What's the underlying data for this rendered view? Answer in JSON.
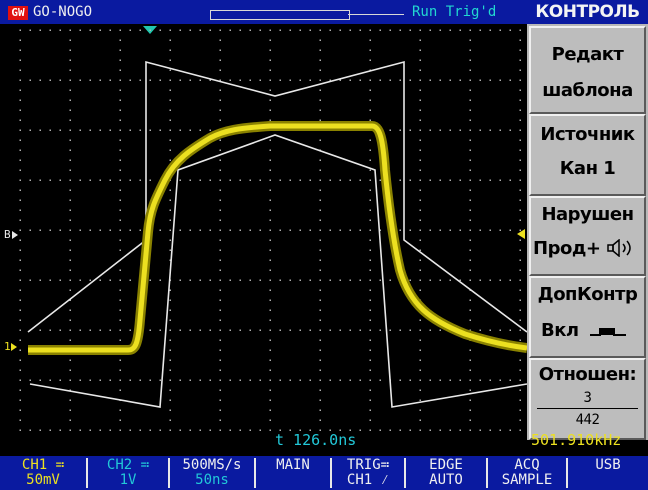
{
  "topbar": {
    "logo": "GW",
    "mode": "GO-NOGO",
    "status": "Run Trig'd"
  },
  "menu": {
    "title": "КОНТРОЛЬ",
    "buttons": [
      {
        "line1": "Редакт",
        "line2": "шаблона"
      },
      {
        "line1": "Источник",
        "line2": "Кан 1"
      },
      {
        "line1": "Нарушен",
        "line2": "Прод+"
      },
      {
        "line1": "ДопКонтр",
        "line2": "Вкл"
      },
      {
        "line1": "Отношен:",
        "num": "3",
        "den": "442"
      }
    ]
  },
  "readouts": {
    "time": "t 126.0ns",
    "frequency": "501.910kHz"
  },
  "bottom": [
    {
      "top": "CH1",
      "bottom": "50mV",
      "color": "yellow"
    },
    {
      "top": "CH2",
      "bottom": "1V",
      "color": "cyan"
    },
    {
      "top": "500MS/s",
      "bottom": "50ns",
      "color": "white"
    },
    {
      "top": "MAIN",
      "bottom": "",
      "color": "white"
    },
    {
      "top": "TRIG",
      "bottom": "CH1",
      "color": "white"
    },
    {
      "top": "EDGE",
      "bottom": "AUTO",
      "color": "white"
    },
    {
      "top": "ACQ",
      "bottom": "SAMPLE",
      "color": "white"
    },
    {
      "top": "USB",
      "bottom": "",
      "color": "white"
    }
  ],
  "markers": {
    "ch1": "1",
    "ref": "B"
  },
  "colors": {
    "ch1": "#ece020",
    "ch2": "#22c8d8",
    "template": "#e8e8e8",
    "bar": "#0a1aa0",
    "menu": "#b8b8b8"
  }
}
